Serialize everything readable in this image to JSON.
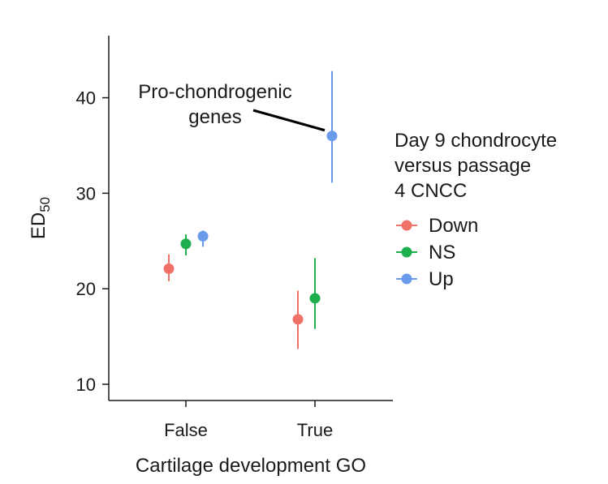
{
  "chart_data": {
    "type": "scatter",
    "subtype": "point-range (mean with error bars)",
    "categories": [
      "False",
      "True"
    ],
    "xlabel": "Cartilage development GO",
    "ylabel": "ED",
    "ylabel_subscript": "50",
    "ylim": [
      8.3,
      46.5
    ],
    "yticks": [
      10,
      20,
      30,
      40
    ],
    "grid": false,
    "legend": {
      "title_lines": [
        "Day 9 chondrocyte",
        "versus passage",
        "4 CNCC"
      ],
      "placement": "right"
    },
    "series": [
      {
        "name": "Down",
        "color": "#F07167",
        "offset_index": -1,
        "points": [
          {
            "category": "False",
            "y": 22.1,
            "low": 20.8,
            "high": 23.6
          },
          {
            "category": "True",
            "y": 16.8,
            "low": 13.7,
            "high": 19.8
          }
        ]
      },
      {
        "name": "NS",
        "color": "#1DAF4E",
        "offset_index": 0,
        "points": [
          {
            "category": "False",
            "y": 24.7,
            "low": 23.5,
            "high": 25.7
          },
          {
            "category": "True",
            "y": 19.0,
            "low": 15.8,
            "high": 23.2
          }
        ]
      },
      {
        "name": "Up",
        "color": "#6A9BEB",
        "offset_index": 1,
        "points": [
          {
            "category": "False",
            "y": 25.5,
            "low": 24.4,
            "high": 26.1
          },
          {
            "category": "True",
            "y": 36.0,
            "low": 31.1,
            "high": 42.8
          }
        ]
      }
    ],
    "annotations": [
      {
        "text_lines": [
          "Pro-chondrogenic",
          "genes"
        ],
        "points_to": {
          "series": "Up",
          "category": "True"
        }
      }
    ]
  }
}
